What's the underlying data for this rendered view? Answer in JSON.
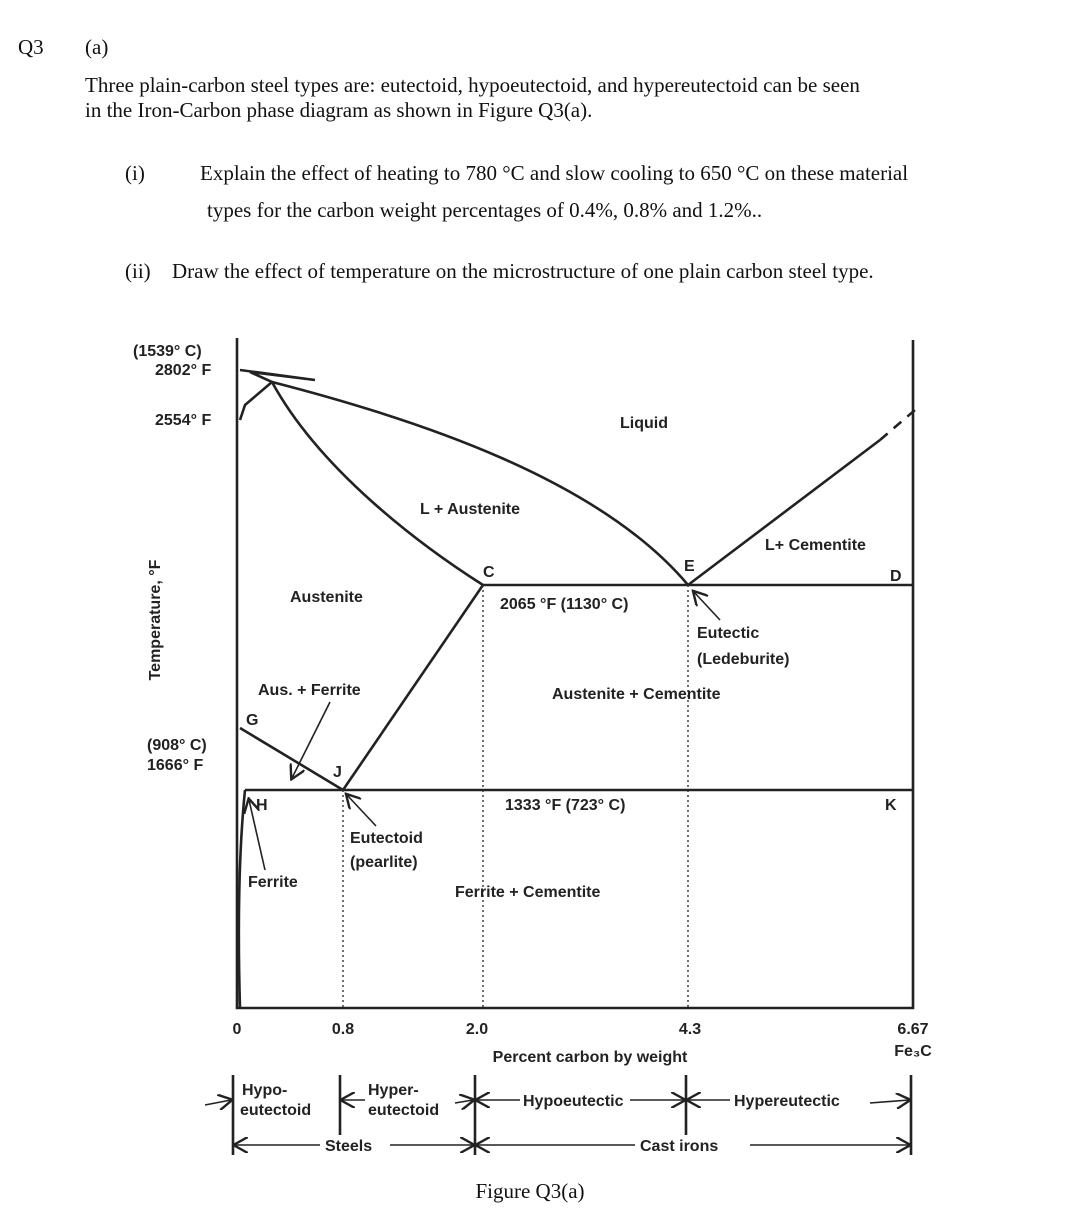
{
  "question": {
    "number": "Q3",
    "part": "(a)",
    "intro": [
      "Three plain-carbon steel types are: eutectoid, hypoeutectoid, and hypereutectoid can be seen",
      "in the Iron-Carbon phase diagram as shown in Figure Q3(a)."
    ],
    "items": [
      {
        "label": "(i)",
        "text": [
          "Explain the effect of heating to 780 °C and slow cooling to 650 °C on these material",
          "types for the carbon weight percentages of 0.4%, 0.8% and 1.2%.."
        ]
      },
      {
        "label": "(ii)",
        "text": [
          "Draw the effect of temperature on the microstructure of one plain carbon steel type."
        ]
      }
    ]
  },
  "figure": {
    "caption": "Figure Q3(a)",
    "y_axis_label": "Temperature, °F",
    "x_axis_label": "Percent carbon by weight",
    "temp_labels": [
      "(1539° C)",
      "2802° F",
      "2554° F",
      "(908° C)",
      "1666° F"
    ],
    "x_ticks": [
      "0",
      "0.8",
      "2.0",
      "4.3",
      "6.67",
      "Fe₃C"
    ],
    "regions": [
      "Liquid",
      "L + Austenite",
      "L+ Cementite",
      "Austenite",
      "Austenite + Cementite",
      "Aus. + Ferrite",
      "Ferrite",
      "Ferrite + Cementite"
    ],
    "points": [
      "C",
      "E",
      "D",
      "G",
      "H",
      "J",
      "K"
    ],
    "annotations": [
      "2065 °F (1130° C)",
      "Eutectic",
      "(Ledeburite)",
      "1333 °F (723° C)",
      "Eutectoid",
      "(pearlite)"
    ],
    "classes": [
      "Hypo-",
      "eutectoid",
      "Hyper-",
      "eutectoid",
      "Hypoeutectic",
      "Hypereutectic",
      "Steels",
      "Cast irons"
    ]
  }
}
